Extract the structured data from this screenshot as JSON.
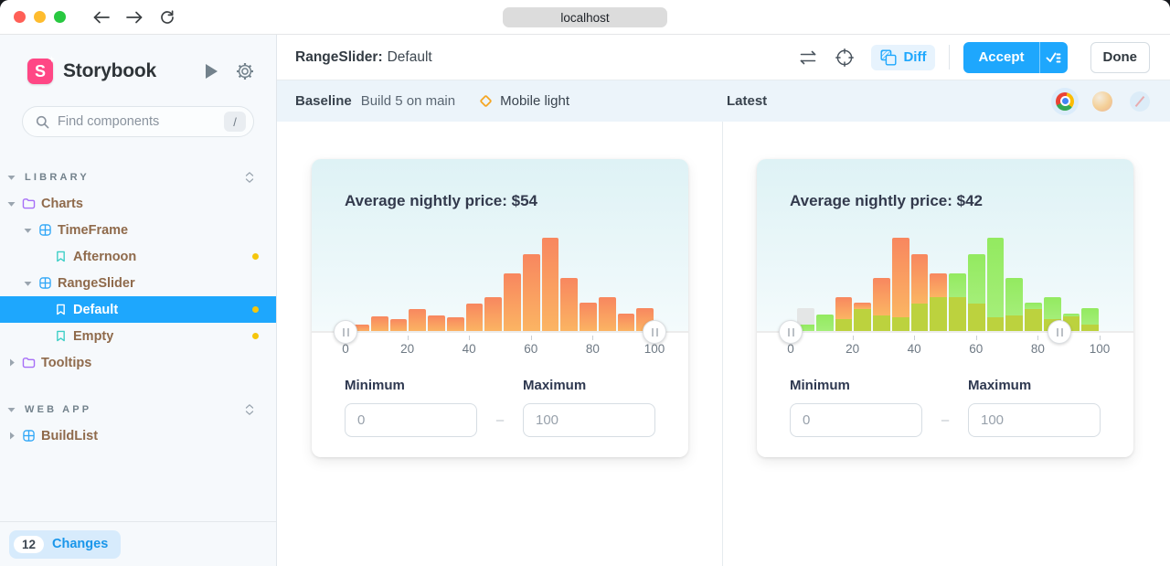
{
  "browser": {
    "url": "localhost",
    "traffic_lights": [
      "#FF5F57",
      "#FEBC2E",
      "#28C840"
    ]
  },
  "sidebar": {
    "logo_letter": "S",
    "brand_name": "Storybook",
    "search": {
      "placeholder": "Find components",
      "shortcut": "/"
    },
    "sections": [
      {
        "label": "LIBRARY",
        "items": [
          {
            "label": "Charts",
            "icon": "folder",
            "caret": "down",
            "depth": 0
          },
          {
            "label": "TimeFrame",
            "icon": "component",
            "caret": "down",
            "depth": 1
          },
          {
            "label": "Afternoon",
            "icon": "story",
            "depth": 2,
            "dot": true
          },
          {
            "label": "RangeSlider",
            "icon": "component",
            "caret": "down",
            "depth": 1
          },
          {
            "label": "Default",
            "icon": "story",
            "depth": 2,
            "dot": true,
            "selected": true
          },
          {
            "label": "Empty",
            "icon": "story",
            "depth": 2,
            "dot": true
          },
          {
            "label": "Tooltips",
            "icon": "folder",
            "caret": "right",
            "depth": 0
          }
        ]
      },
      {
        "label": "WEB APP",
        "items": [
          {
            "label": "BuildList",
            "icon": "component",
            "caret": "right",
            "depth": 0
          }
        ]
      }
    ],
    "footer": {
      "count": "12",
      "label": "Changes"
    }
  },
  "header": {
    "component": "RangeSlider:",
    "story": "Default",
    "diff_label": "Diff",
    "accept_label": "Accept",
    "done_label": "Done"
  },
  "compare_bar": {
    "baseline_label": "Baseline",
    "build_label": "Build 5 on main",
    "mode_label": "Mobile light",
    "latest_label": "Latest",
    "browsers": [
      "chrome",
      "firefox",
      "safari"
    ]
  },
  "panels": [
    {
      "title": "Average nightly price: $54",
      "min_label": "Minimum",
      "min_value": "0",
      "separator": "–",
      "max_label": "Maximum",
      "max_value": "100"
    },
    {
      "title": "Average nightly price: $42",
      "min_label": "Minimum",
      "min_value": "0",
      "separator": "–",
      "max_label": "Maximum",
      "max_value": "100"
    }
  ],
  "colors": {
    "accent_blue": "#1EA7FD",
    "brand_pink": "#FF4785",
    "story_dot_yellow": "#F5C60C",
    "folder_purple": "#A66EF7",
    "component_blue": "#2DA6F7",
    "story_teal": "#3CCFC6",
    "bar_orange_top": "#F8875F",
    "bar_orange_bottom": "#FBB563",
    "bar_green": "#9BEC6C",
    "bar_olive": "#BCD23E",
    "bar_gray": "#E4E6E6",
    "mode_diamond_yellow": "#F5A623"
  },
  "chart_data": [
    {
      "type": "bar",
      "panel": "baseline",
      "title": "Average nightly price: $54",
      "x_ticks": [
        "0",
        "20",
        "40",
        "60",
        "80",
        "100"
      ],
      "xlim": [
        0,
        100
      ],
      "handle_positions": [
        0,
        100
      ],
      "bars": [
        [
          {
            "color": "orange",
            "value": 8
          }
        ],
        [
          {
            "color": "orange",
            "value": 17
          }
        ],
        [
          {
            "color": "orange",
            "value": 14
          }
        ],
        [
          {
            "color": "orange",
            "value": 25
          }
        ],
        [
          {
            "color": "orange",
            "value": 18
          }
        ],
        [
          {
            "color": "orange",
            "value": 16
          }
        ],
        [
          {
            "color": "orange",
            "value": 31
          }
        ],
        [
          {
            "color": "orange",
            "value": 38
          }
        ],
        [
          {
            "color": "orange",
            "value": 64
          }
        ],
        [
          {
            "color": "orange",
            "value": 85
          }
        ],
        [
          {
            "color": "orange",
            "value": 103
          }
        ],
        [
          {
            "color": "orange",
            "value": 59
          }
        ],
        [
          {
            "color": "orange",
            "value": 32
          }
        ],
        [
          {
            "color": "orange",
            "value": 38
          }
        ],
        [
          {
            "color": "orange",
            "value": 20
          }
        ],
        [
          {
            "color": "orange",
            "value": 26
          }
        ]
      ]
    },
    {
      "type": "bar",
      "panel": "latest",
      "title": "Average nightly price: $42",
      "x_ticks": [
        "0",
        "20",
        "40",
        "60",
        "80",
        "100"
      ],
      "xlim": [
        0,
        100
      ],
      "handle_positions": [
        0,
        87
      ],
      "bars": [
        [
          {
            "color": "green",
            "value": 8
          },
          {
            "color": "gray",
            "value": 18
          }
        ],
        [
          {
            "color": "green",
            "value": 19
          }
        ],
        [
          {
            "color": "olive",
            "value": 14
          },
          {
            "color": "orange",
            "value": 24
          }
        ],
        [
          {
            "color": "olive",
            "value": 25
          },
          {
            "color": "orange",
            "value": 7
          }
        ],
        [
          {
            "color": "olive",
            "value": 18
          },
          {
            "color": "orange",
            "value": 41
          }
        ],
        [
          {
            "color": "olive",
            "value": 16
          },
          {
            "color": "orange",
            "value": 87
          }
        ],
        [
          {
            "color": "olive",
            "value": 31
          },
          {
            "color": "orange",
            "value": 54
          }
        ],
        [
          {
            "color": "olive",
            "value": 38
          },
          {
            "color": "orange",
            "value": 26
          }
        ],
        [
          {
            "color": "olive",
            "value": 38
          },
          {
            "color": "green",
            "value": 26
          }
        ],
        [
          {
            "color": "olive",
            "value": 31
          },
          {
            "color": "green",
            "value": 54
          }
        ],
        [
          {
            "color": "olive",
            "value": 16
          },
          {
            "color": "green",
            "value": 87
          }
        ],
        [
          {
            "color": "olive",
            "value": 18
          },
          {
            "color": "green",
            "value": 41
          }
        ],
        [
          {
            "color": "olive",
            "value": 25
          },
          {
            "color": "green",
            "value": 7
          }
        ],
        [
          {
            "color": "olive",
            "value": 14
          },
          {
            "color": "green",
            "value": 24
          }
        ],
        [
          {
            "color": "olive",
            "value": 17
          },
          {
            "color": "green",
            "value": 3
          }
        ],
        [
          {
            "color": "olive",
            "value": 8
          },
          {
            "color": "green",
            "value": 18
          }
        ]
      ]
    }
  ]
}
